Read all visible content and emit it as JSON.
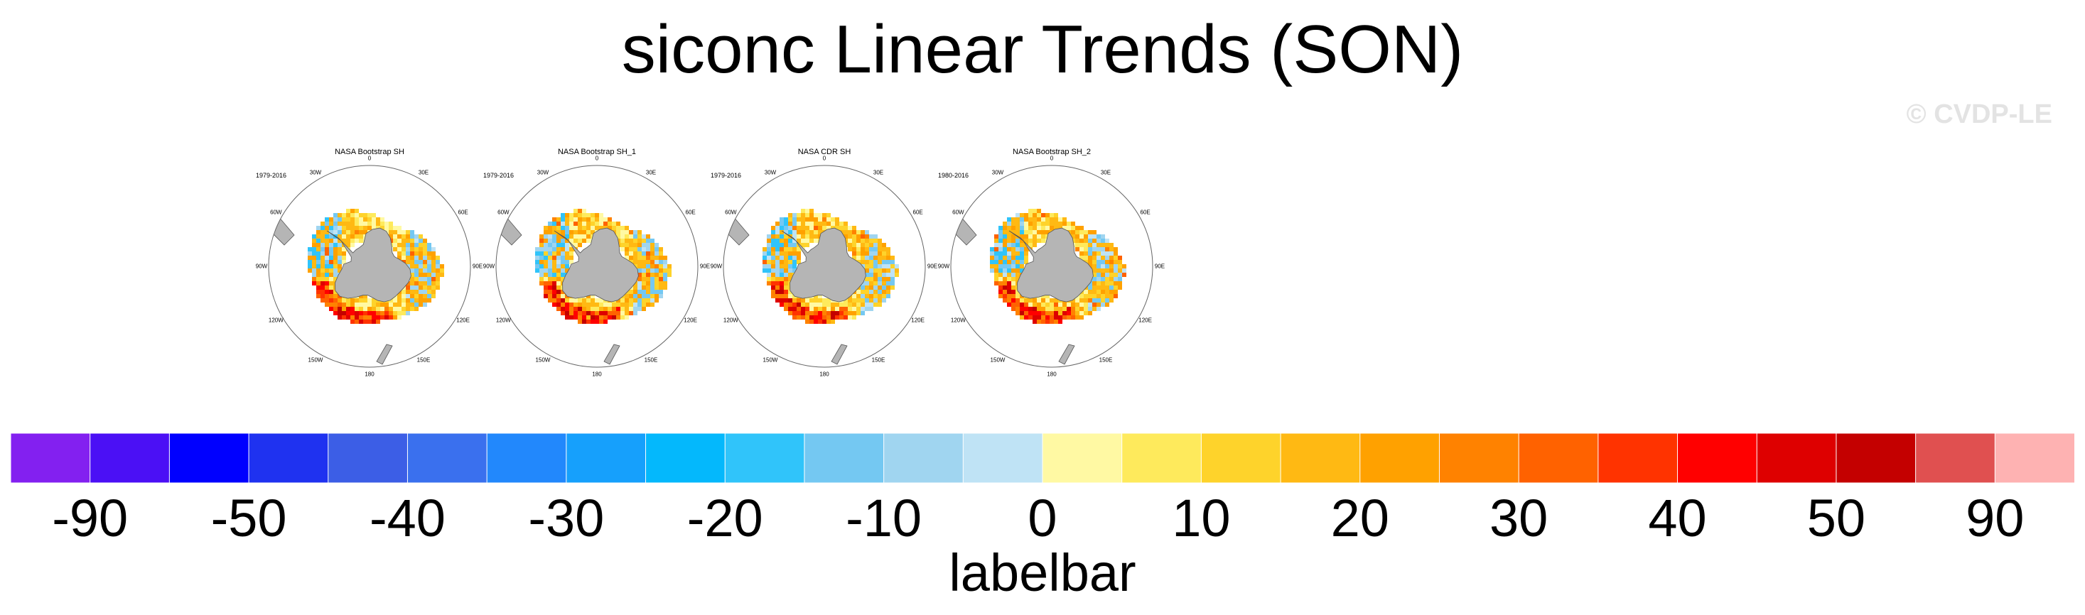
{
  "title": "siconc Linear Trends (SON)",
  "watermark": "© CVDP-LE",
  "panels": [
    {
      "title": "NASA Bootstrap SH",
      "years": "1979-2016"
    },
    {
      "title": "NASA Bootstrap SH_1",
      "years": "1979-2016"
    },
    {
      "title": "NASA CDR SH",
      "years": "1979-2016"
    },
    {
      "title": "NASA Bootstrap SH_2",
      "years": "1980-2016"
    }
  ],
  "map_ticks": [
    "0",
    "30E",
    "60E",
    "90E",
    "120E",
    "150E",
    "180",
    "150W",
    "120W",
    "90W",
    "60W",
    "30W"
  ],
  "colorbar": {
    "title": "labelbar",
    "tick_labels": [
      "-90",
      "-50",
      "-40",
      "-30",
      "-20",
      "-10",
      "0",
      "10",
      "20",
      "30",
      "40",
      "50",
      "90"
    ],
    "colors": [
      "#8320f0",
      "#4b10f5",
      "#0000ff",
      "#1f32f0",
      "#3c5ee6",
      "#3a70ee",
      "#2288fc",
      "#16a0fc",
      "#04b8fc",
      "#30c4fa",
      "#74c8f2",
      "#a0d5f0",
      "#bfe3f5",
      "#fff9a3",
      "#feea5c",
      "#fed32b",
      "#ffb913",
      "#ffa100",
      "#ff8200",
      "#ff6200",
      "#ff3300",
      "#ff0000",
      "#de0000",
      "#c40000",
      "#e05050",
      "#feb2b2"
    ]
  },
  "chart_data": {
    "type": "heatmap",
    "title": "siconc Linear Trends (SON)",
    "projection": "south polar stereographic",
    "legend_placement": "bottom",
    "colorbar_label": "labelbar",
    "colorbar_ticks": [
      -90,
      -50,
      -40,
      -30,
      -20,
      -10,
      0,
      10,
      20,
      30,
      40,
      50,
      90
    ],
    "series": [
      {
        "name": "NASA Bootstrap SH",
        "period": "1979-2016"
      },
      {
        "name": "NASA Bootstrap SH_1",
        "period": "1979-2016"
      },
      {
        "name": "NASA CDR SH",
        "period": "1979-2016"
      },
      {
        "name": "NASA Bootstrap SH_2",
        "period": "1980-2016"
      }
    ]
  }
}
